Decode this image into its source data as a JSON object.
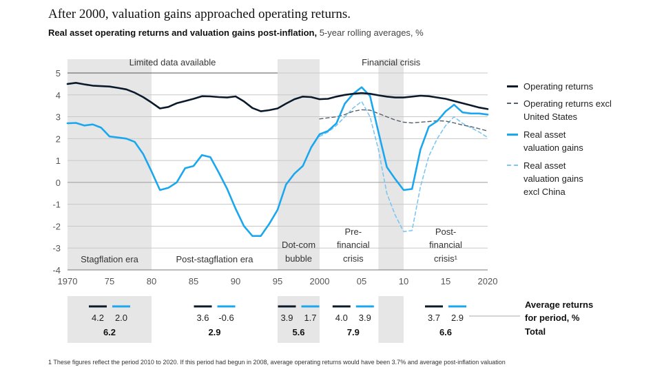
{
  "title": "After 2000, valuation gains approached operating returns.",
  "subtitle_bold": "Real asset operating returns and valuation gains post-inflation,",
  "subtitle_rest": " 5-year rolling averages, %",
  "colors": {
    "operating": "#0a1a2a",
    "operating_ex_us": "#555e6a",
    "valuation": "#1aa7ee",
    "valuation_ex_china": "#7cc6f2",
    "shade": "#e6e6e6"
  },
  "chart_data": {
    "type": "line",
    "ylim": [
      -4,
      5
    ],
    "xlim": [
      1970,
      2020
    ],
    "yticks": [
      "5",
      "4",
      "3",
      "2",
      "1",
      "0",
      "-1",
      "-2",
      "-3",
      "-4"
    ],
    "xticks": [
      "1970",
      "75",
      "80",
      "85",
      "90",
      "95",
      "2000",
      "05",
      "10",
      "15",
      "2020"
    ],
    "series": [
      {
        "name": "Operating returns",
        "style": "solid-dark",
        "x": [
          1970,
          1971,
          1972,
          1973,
          1974,
          1975,
          1976,
          1977,
          1978,
          1979,
          1980,
          1981,
          1982,
          1983,
          1984,
          1985,
          1986,
          1987,
          1988,
          1989,
          1990,
          1991,
          1992,
          1993,
          1994,
          1995,
          1996,
          1997,
          1998,
          1999,
          2000,
          2001,
          2002,
          2003,
          2004,
          2005,
          2006,
          2007,
          2008,
          2009,
          2010,
          2011,
          2012,
          2013,
          2014,
          2015,
          2016,
          2017,
          2018,
          2019,
          2020
        ],
        "values": [
          4.5,
          4.55,
          4.48,
          4.42,
          4.4,
          4.38,
          4.32,
          4.25,
          4.1,
          3.9,
          3.65,
          3.38,
          3.45,
          3.62,
          3.72,
          3.82,
          3.94,
          3.93,
          3.9,
          3.88,
          3.93,
          3.7,
          3.4,
          3.25,
          3.3,
          3.38,
          3.6,
          3.8,
          3.92,
          3.9,
          3.8,
          3.82,
          3.92,
          4.0,
          4.05,
          4.08,
          4.05,
          3.98,
          3.92,
          3.88,
          3.88,
          3.92,
          3.96,
          3.94,
          3.88,
          3.82,
          3.72,
          3.62,
          3.52,
          3.42,
          3.35
        ]
      },
      {
        "name": "Operating returns excl United States",
        "style": "dashed-dark",
        "x": [
          2000,
          2001,
          2002,
          2003,
          2004,
          2005,
          2006,
          2007,
          2008,
          2009,
          2010,
          2011,
          2012,
          2013,
          2014,
          2015,
          2016,
          2017,
          2018,
          2019,
          2020
        ],
        "values": [
          2.9,
          2.95,
          3.0,
          3.1,
          3.25,
          3.32,
          3.3,
          3.15,
          3.0,
          2.85,
          2.75,
          2.72,
          2.75,
          2.78,
          2.82,
          2.8,
          2.72,
          2.62,
          2.55,
          2.45,
          2.35
        ]
      },
      {
        "name": "Real asset valuation gains",
        "style": "solid-blue",
        "x": [
          1970,
          1971,
          1972,
          1973,
          1974,
          1975,
          1976,
          1977,
          1978,
          1979,
          1980,
          1981,
          1982,
          1983,
          1984,
          1985,
          1986,
          1987,
          1988,
          1989,
          1990,
          1991,
          1992,
          1993,
          1994,
          1995,
          1996,
          1997,
          1998,
          1999,
          2000,
          2001,
          2002,
          2003,
          2004,
          2005,
          2006,
          2007,
          2008,
          2009,
          2010,
          2011,
          2012,
          2013,
          2014,
          2015,
          2016,
          2017,
          2018,
          2019,
          2020
        ],
        "values": [
          2.7,
          2.72,
          2.6,
          2.65,
          2.5,
          2.1,
          2.05,
          2.0,
          1.85,
          1.3,
          0.5,
          -0.35,
          -0.25,
          0.0,
          0.65,
          0.75,
          1.25,
          1.15,
          0.45,
          -0.3,
          -1.2,
          -2.0,
          -2.45,
          -2.45,
          -1.9,
          -1.25,
          -0.1,
          0.4,
          0.75,
          1.6,
          2.2,
          2.35,
          2.7,
          3.6,
          4.05,
          4.35,
          3.95,
          2.3,
          0.7,
          0.15,
          -0.35,
          -0.3,
          1.5,
          2.55,
          2.8,
          3.25,
          3.55,
          3.2,
          3.15,
          3.15,
          3.1
        ]
      },
      {
        "name": "Real asset valuation gains excl China",
        "style": "dashed-blue",
        "x": [
          2000,
          2001,
          2002,
          2003,
          2004,
          2005,
          2006,
          2007,
          2008,
          2009,
          2010,
          2011,
          2012,
          2013,
          2014,
          2015,
          2016,
          2017,
          2018,
          2019,
          2020
        ],
        "values": [
          2.1,
          2.3,
          2.6,
          3.0,
          3.4,
          3.7,
          3.0,
          1.5,
          -0.5,
          -1.5,
          -2.25,
          -2.2,
          -0.2,
          1.2,
          2.0,
          2.6,
          3.0,
          2.7,
          2.5,
          2.3,
          2.05
        ]
      }
    ],
    "shaded_periods": [
      [
        1970,
        1980
      ],
      [
        1995,
        2000
      ],
      [
        2007,
        2010
      ]
    ],
    "top_labels": [
      "Limited data available",
      "Financial crisis"
    ],
    "era_labels": [
      {
        "lines": [
          "Stagflation era"
        ]
      },
      {
        "lines": [
          "Post-stagflation era"
        ]
      },
      {
        "lines": [
          "Dot-com",
          "bubble"
        ]
      },
      {
        "lines": [
          "Pre-",
          "financial",
          "crisis"
        ]
      },
      {
        "lines": [
          "Post-",
          "financial",
          "crisis¹"
        ]
      }
    ],
    "legend": [
      "Operating returns",
      "Operating returns excl United States",
      "Real asset valuation gains",
      "Real asset valuation gains excl China"
    ],
    "period_averages": [
      {
        "operating": "4.2",
        "valuation": "2.0",
        "total": "6.2"
      },
      {
        "operating": "3.6",
        "valuation": "-0.6",
        "total": "2.9"
      },
      {
        "operating": "3.9",
        "valuation": "1.7",
        "total": "5.6"
      },
      {
        "operating": "4.0",
        "valuation": "3.9",
        "total": "7.9"
      },
      {
        "operating": "3.7",
        "valuation": "2.9",
        "total": "6.6"
      }
    ],
    "averages_label": [
      "Average returns",
      "for period, %",
      "Total"
    ]
  },
  "footnote": "1   These figures reflect the period 2010 to 2020. If this period had begun in 2008, average operating returns would have been 3.7% and average post-inflation valuation"
}
